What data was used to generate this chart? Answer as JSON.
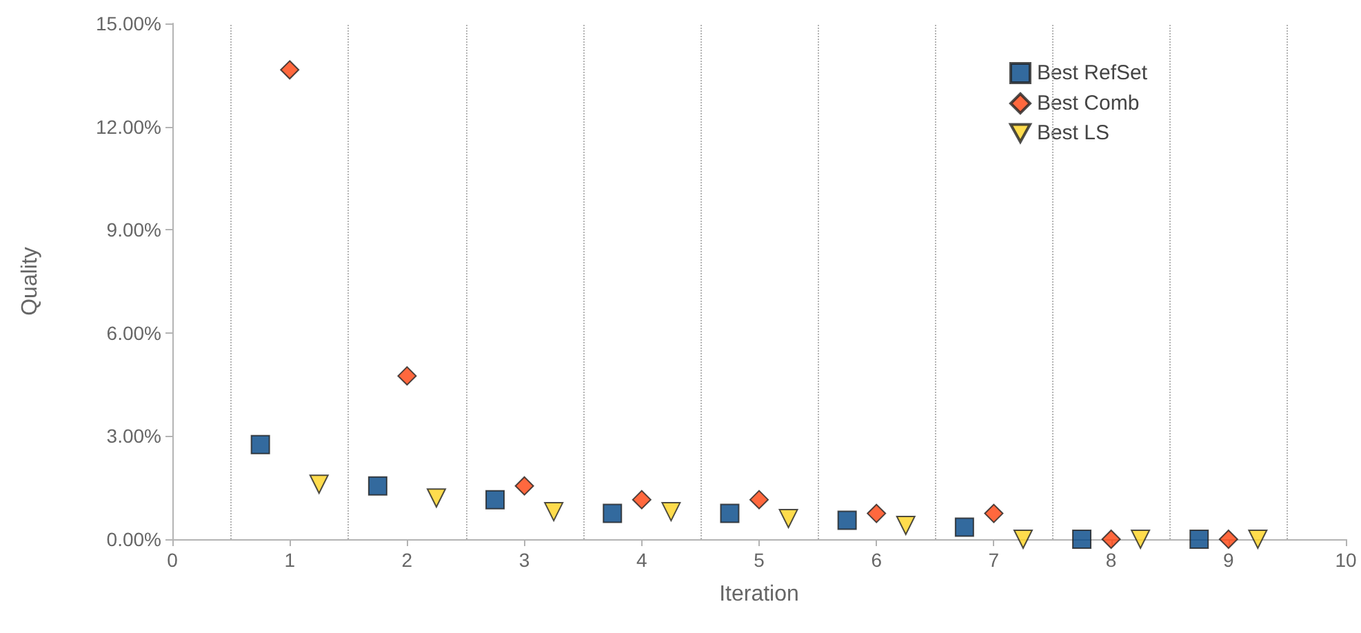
{
  "chart_data": {
    "type": "scatter",
    "xlabel": "Iteration",
    "ylabel": "Quality",
    "series": [
      {
        "name": "Best RefSet",
        "color": "#004586",
        "marker": "square",
        "x": [
          0.75,
          1.75,
          2.75,
          3.75,
          4.75,
          5.75,
          6.75,
          7.75,
          8.75
        ],
        "values": [
          2.75,
          1.55,
          1.15,
          0.75,
          0.75,
          0.55,
          0.35,
          0,
          0
        ]
      },
      {
        "name": "Best Comb",
        "color": "#ff420e",
        "marker": "diamond",
        "x": [
          1,
          2,
          3,
          4,
          5,
          6,
          7,
          8,
          9
        ],
        "values": [
          13.65,
          4.75,
          1.55,
          1.15,
          1.15,
          0.75,
          0.75,
          0,
          0
        ]
      },
      {
        "name": "Best LS",
        "color": "#ffd320",
        "marker": "triangle-down",
        "x": [
          1.25,
          2.25,
          3.25,
          4.25,
          5.25,
          6.25,
          7.25,
          8.25,
          9.25
        ],
        "values": [
          1.6,
          1.2,
          0.8,
          0.8,
          0.6,
          0.4,
          0,
          0,
          0
        ]
      }
    ],
    "xlim": [
      0,
      10
    ],
    "xticks": [
      0,
      1,
      2,
      3,
      4,
      5,
      6,
      7,
      8,
      9,
      10
    ],
    "ylim": [
      0,
      15
    ],
    "yticks": [
      {
        "value": 0,
        "label": "0.00%"
      },
      {
        "value": 3,
        "label": "3.00%"
      },
      {
        "value": 6,
        "label": "6.00%"
      },
      {
        "value": 9,
        "label": "9.00%"
      },
      {
        "value": 12,
        "label": "12.00%"
      },
      {
        "value": 15,
        "label": "15.00%"
      }
    ],
    "ref_lines": [
      {
        "axis": "x",
        "value": 0.5,
        "color": "#b3b3b3",
        "line_style": "dotted"
      },
      {
        "axis": "x",
        "value": 1.5,
        "color": "#b3b3b3",
        "line_style": "dotted"
      },
      {
        "axis": "x",
        "value": 2.5,
        "color": "#b3b3b3",
        "line_style": "dotted"
      },
      {
        "axis": "x",
        "value": 3.5,
        "color": "#b3b3b3",
        "line_style": "dotted"
      },
      {
        "axis": "x",
        "value": 4.5,
        "color": "#b3b3b3",
        "line_style": "dotted"
      },
      {
        "axis": "x",
        "value": 5.5,
        "color": "#b3b3b3",
        "line_style": "dotted"
      },
      {
        "axis": "x",
        "value": 6.5,
        "color": "#b3b3b3",
        "line_style": "dotted"
      },
      {
        "axis": "x",
        "value": 7.5,
        "color": "#b3b3b3",
        "line_style": "dotted"
      },
      {
        "axis": "x",
        "value": 8.5,
        "color": "#b3b3b3",
        "line_style": "dotted"
      },
      {
        "axis": "x",
        "value": 9.5,
        "color": "#b3b3b3",
        "line_style": "dotted"
      }
    ],
    "grid": false,
    "legend": "top right"
  }
}
